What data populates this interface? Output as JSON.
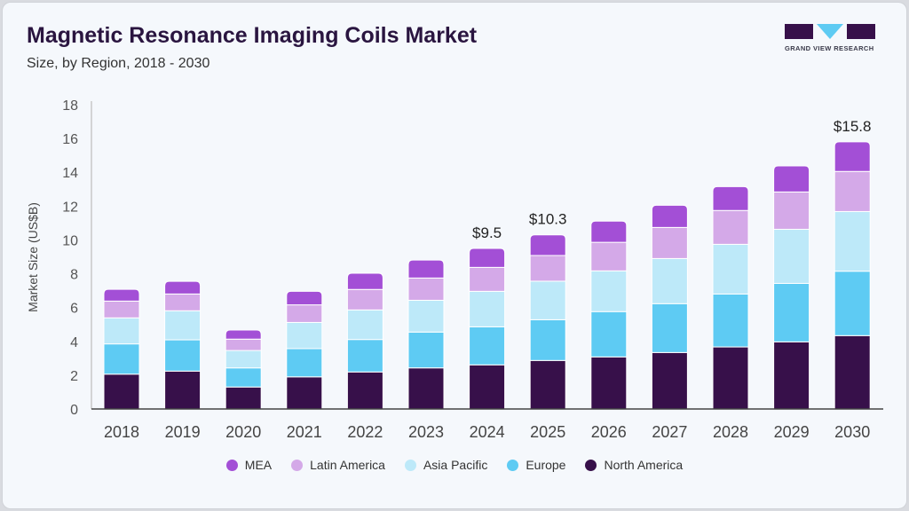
{
  "header": {
    "title": "Magnetic Resonance Imaging Coils Market",
    "subtitle": "Size, by Region, 2018 - 2030",
    "logo_text": "GRAND VIEW RESEARCH"
  },
  "chart_data": {
    "type": "bar",
    "stacked": true,
    "ylabel": "Market Size (US$B)",
    "ylim": [
      0,
      18
    ],
    "yticks": [
      0,
      2,
      4,
      6,
      8,
      10,
      12,
      14,
      16,
      18
    ],
    "grid": false,
    "legend_position": "bottom",
    "categories": [
      "2018",
      "2019",
      "2020",
      "2021",
      "2022",
      "2023",
      "2024",
      "2025",
      "2026",
      "2027",
      "2028",
      "2029",
      "2030"
    ],
    "series": [
      {
        "name": "North America",
        "color": "#37104a",
        "values": [
          2.06,
          2.24,
          1.3,
          1.9,
          2.19,
          2.43,
          2.61,
          2.87,
          3.08,
          3.34,
          3.67,
          3.97,
          4.34
        ]
      },
      {
        "name": "Europe",
        "color": "#5ecbf3",
        "values": [
          1.79,
          1.85,
          1.13,
          1.67,
          1.92,
          2.12,
          2.25,
          2.41,
          2.68,
          2.89,
          3.13,
          3.46,
          3.81
        ]
      },
      {
        "name": "Asia Pacific",
        "color": "#bde9f9",
        "values": [
          1.54,
          1.72,
          1.03,
          1.55,
          1.75,
          1.88,
          2.1,
          2.28,
          2.41,
          2.67,
          2.94,
          3.2,
          3.53
        ]
      },
      {
        "name": "Latin America",
        "color": "#d4a9e8",
        "values": [
          0.99,
          0.99,
          0.67,
          1.04,
          1.21,
          1.32,
          1.42,
          1.52,
          1.69,
          1.84,
          2.0,
          2.21,
          2.37
        ]
      },
      {
        "name": "MEA",
        "color": "#a34fd6",
        "values": [
          0.7,
          0.75,
          0.54,
          0.8,
          0.96,
          1.06,
          1.12,
          1.22,
          1.25,
          1.31,
          1.41,
          1.54,
          1.75
        ]
      }
    ],
    "annotations": [
      {
        "category": "2024",
        "label": "$9.5"
      },
      {
        "category": "2025",
        "label": "$10.3"
      },
      {
        "category": "2030",
        "label": "$15.8"
      }
    ]
  },
  "legend_order": [
    "MEA",
    "Latin America",
    "Asia Pacific",
    "Europe",
    "North America"
  ]
}
